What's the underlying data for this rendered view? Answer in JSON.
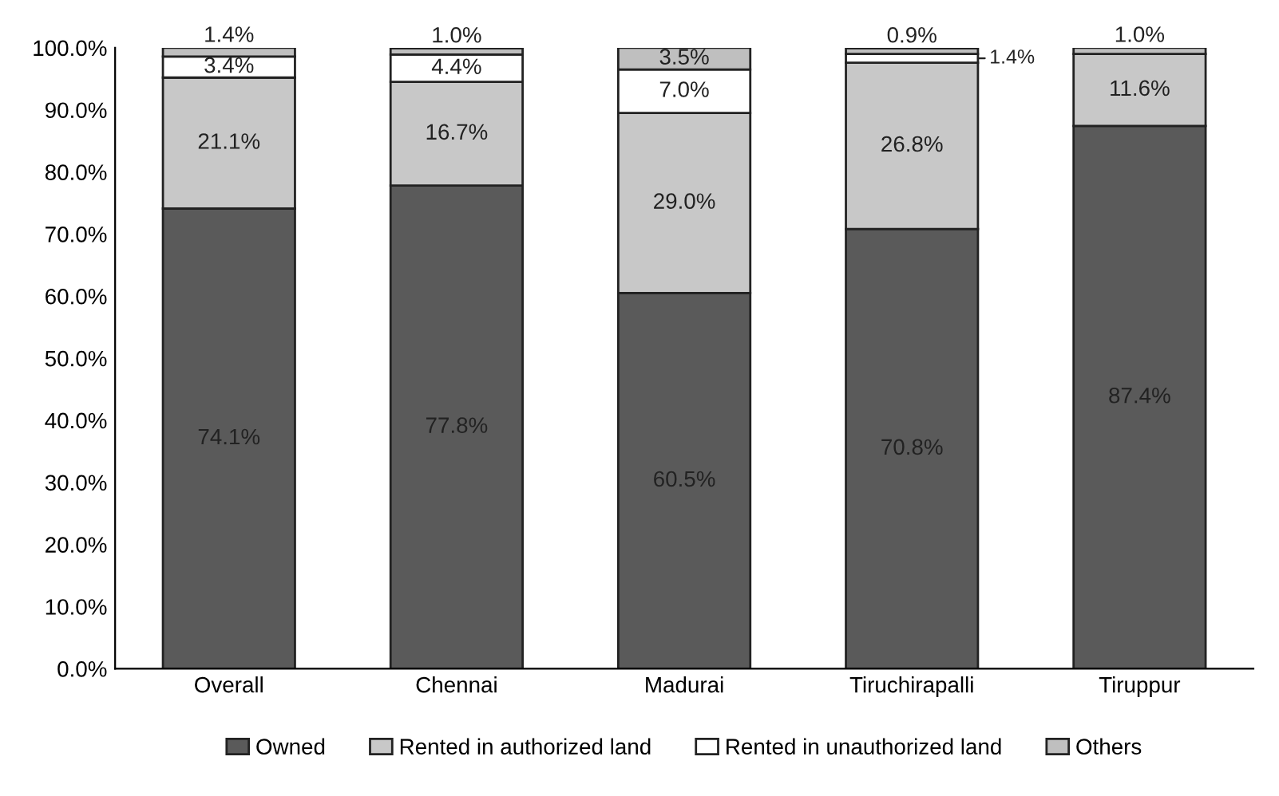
{
  "chart_data": {
    "type": "bar",
    "stacked": true,
    "categories": [
      "Overall",
      "Chennai",
      "Madurai",
      "Tiruchirapalli",
      "Tiruppur"
    ],
    "series": [
      {
        "name": "Owned",
        "color": "#5a5a5a",
        "values": [
          74.1,
          77.8,
          60.5,
          70.8,
          87.4
        ],
        "value_labels": [
          "74.1%",
          "77.8%",
          "60.5%",
          "70.8%",
          "87.4%"
        ]
      },
      {
        "name": "Rented in authorized land",
        "color": "#c8c8c8",
        "values": [
          21.1,
          16.7,
          29.0,
          26.8,
          11.6
        ],
        "value_labels": [
          "21.1%",
          "16.7%",
          "29.0%",
          "26.8%",
          "11.6%"
        ]
      },
      {
        "name": "Rented in unauthorized land",
        "color": "#ffffff",
        "values": [
          3.4,
          4.4,
          7.0,
          1.4,
          null
        ],
        "value_labels": [
          "3.4%",
          "4.4%",
          "7.0%",
          "1.4%",
          null
        ]
      },
      {
        "name": "Others",
        "color": "#bfbfbf",
        "values": [
          1.4,
          1.0,
          3.5,
          0.9,
          1.0
        ],
        "value_labels": [
          "1.4%",
          "1.0%",
          "3.5%",
          "0.9%",
          "1.0%"
        ]
      }
    ],
    "ylim": [
      0,
      100
    ],
    "yticks": [
      {
        "value": 0,
        "label": "0.0%"
      },
      {
        "value": 10,
        "label": "10.0%"
      },
      {
        "value": 20,
        "label": "20.0%"
      },
      {
        "value": 30,
        "label": "30.0%"
      },
      {
        "value": 40,
        "label": "40.0%"
      },
      {
        "value": 50,
        "label": "50.0%"
      },
      {
        "value": 60,
        "label": "60.0%"
      },
      {
        "value": 70,
        "label": "70.0%"
      },
      {
        "value": 80,
        "label": "80.0%"
      },
      {
        "value": 90,
        "label": "90.0%"
      },
      {
        "value": 100,
        "label": "100.0%"
      }
    ],
    "legend": "bottom",
    "grid": false
  }
}
